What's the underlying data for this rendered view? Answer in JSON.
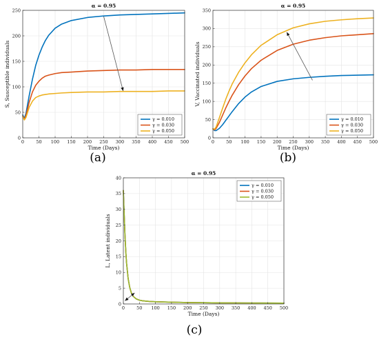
{
  "captions": [
    "(a)",
    "(b)",
    "(c)"
  ],
  "colors": {
    "g010": "#0072bd",
    "g030": "#d95319",
    "g050": "#edb120",
    "g050_c": "#9dbb2d"
  },
  "chart_data": [
    {
      "type": "line",
      "title": "α = 0.95",
      "xlabel": "Time (Days)",
      "ylabel": "S, Susceptible individuals",
      "xlim": [
        0,
        500
      ],
      "ylim": [
        0,
        250
      ],
      "xticks": [
        0,
        50,
        100,
        150,
        200,
        250,
        300,
        350,
        400,
        450,
        500
      ],
      "yticks": [
        0,
        50,
        100,
        150,
        200,
        250
      ],
      "grid": true,
      "legend": "bottom-right",
      "annotation": "arrow from about (250, 238) to (310, 92), direction of increasing γ",
      "series": [
        {
          "name": "γ = 0.010",
          "color": "#0072bd",
          "x": [
            0,
            5,
            10,
            20,
            30,
            40,
            50,
            60,
            70,
            80,
            100,
            120,
            150,
            200,
            250,
            300,
            350,
            400,
            450,
            500
          ],
          "y": [
            45,
            38,
            48,
            83,
            115,
            142,
            162,
            178,
            191,
            201,
            215,
            223,
            230,
            236,
            239,
            241,
            242,
            243,
            244,
            245
          ]
        },
        {
          "name": "γ = 0.030",
          "color": "#d95319",
          "x": [
            0,
            5,
            10,
            20,
            30,
            40,
            50,
            60,
            70,
            80,
            100,
            120,
            150,
            200,
            250,
            300,
            350,
            400,
            450,
            500
          ],
          "y": [
            43,
            36,
            44,
            70,
            90,
            103,
            111,
            117,
            121,
            123,
            126,
            128,
            129,
            131,
            132,
            133,
            133,
            134,
            134,
            134
          ]
        },
        {
          "name": "γ = 0.050",
          "color": "#edb120",
          "x": [
            0,
            5,
            10,
            20,
            30,
            40,
            50,
            60,
            70,
            80,
            100,
            120,
            150,
            200,
            250,
            300,
            350,
            400,
            450,
            500
          ],
          "y": [
            42,
            35,
            40,
            60,
            72,
            79,
            82,
            84,
            85,
            86,
            87,
            88,
            89,
            90,
            90,
            91,
            91,
            91,
            92,
            92
          ]
        }
      ]
    },
    {
      "type": "line",
      "title": "α = 0.95",
      "xlabel": "Time (Days)",
      "ylabel": "V, Vaccinated individuals",
      "xlim": [
        0,
        500
      ],
      "ylim": [
        0,
        350
      ],
      "xticks": [
        0,
        50,
        100,
        150,
        200,
        250,
        300,
        350,
        400,
        450,
        500
      ],
      "yticks": [
        0,
        50,
        100,
        150,
        200,
        250,
        300,
        350
      ],
      "grid": true,
      "legend": "bottom-right",
      "annotation": "arrow from about (310, 158) to (230, 290), direction of increasing γ",
      "series": [
        {
          "name": "γ = 0.010",
          "color": "#0072bd",
          "x": [
            0,
            5,
            10,
            20,
            30,
            40,
            50,
            60,
            80,
            100,
            120,
            150,
            200,
            250,
            300,
            350,
            400,
            450,
            500
          ],
          "y": [
            25,
            20,
            20,
            26,
            36,
            48,
            60,
            72,
            94,
            112,
            126,
            141,
            155,
            162,
            166,
            169,
            171,
            172,
            173
          ]
        },
        {
          "name": "γ = 0.030",
          "color": "#d95319",
          "x": [
            0,
            5,
            10,
            20,
            30,
            40,
            50,
            60,
            80,
            100,
            120,
            150,
            200,
            250,
            300,
            350,
            400,
            450,
            500
          ],
          "y": [
            25,
            22,
            26,
            42,
            62,
            82,
            100,
            117,
            146,
            170,
            190,
            213,
            240,
            257,
            268,
            275,
            280,
            283,
            286
          ]
        },
        {
          "name": "γ = 0.050",
          "color": "#edb120",
          "x": [
            0,
            5,
            10,
            20,
            30,
            40,
            50,
            60,
            80,
            100,
            120,
            150,
            200,
            250,
            300,
            350,
            400,
            450,
            500
          ],
          "y": [
            25,
            24,
            30,
            55,
            81,
            106,
            128,
            148,
            180,
            206,
            228,
            254,
            283,
            302,
            313,
            320,
            324,
            327,
            329
          ]
        }
      ]
    },
    {
      "type": "line",
      "title": "α = 0.95",
      "xlabel": "Time (Days)",
      "ylabel": "L, Latent individuals",
      "xlim": [
        0,
        500
      ],
      "ylim": [
        0,
        40
      ],
      "xticks": [
        0,
        50,
        100,
        150,
        200,
        250,
        300,
        350,
        400,
        450,
        500
      ],
      "yticks": [
        0,
        5,
        10,
        15,
        20,
        25,
        30,
        35,
        40
      ],
      "grid": true,
      "legend": "top-right",
      "annotation": "double-headed arrow near (5, 1) to (35, 3.5)",
      "series": [
        {
          "name": "γ = 0.010",
          "color": "#0072bd",
          "x": [
            0,
            2,
            5,
            8,
            10,
            15,
            20,
            25,
            30,
            40,
            50,
            60,
            80,
            100,
            150,
            200,
            300,
            400,
            500
          ],
          "y": [
            36,
            30,
            22,
            16,
            13,
            8,
            5.2,
            3.5,
            2.5,
            1.6,
            1.2,
            1.0,
            0.8,
            0.7,
            0.55,
            0.45,
            0.35,
            0.3,
            0.25
          ]
        },
        {
          "name": "γ = 0.030",
          "color": "#d95319",
          "x": [
            0,
            2,
            5,
            8,
            10,
            15,
            20,
            25,
            30,
            40,
            50,
            60,
            80,
            100,
            150,
            200,
            300,
            400,
            500
          ],
          "y": [
            36,
            30,
            22,
            16,
            13,
            8,
            5.2,
            3.5,
            2.5,
            1.6,
            1.2,
            1.0,
            0.8,
            0.7,
            0.55,
            0.45,
            0.35,
            0.3,
            0.25
          ]
        },
        {
          "name": "γ = 0.050",
          "color": "#9dbb2d",
          "x": [
            0,
            2,
            5,
            8,
            10,
            15,
            20,
            25,
            30,
            40,
            50,
            60,
            80,
            100,
            150,
            200,
            300,
            400,
            500
          ],
          "y": [
            36,
            30,
            22,
            16,
            13,
            8,
            5.2,
            3.5,
            2.5,
            1.6,
            1.2,
            1.0,
            0.8,
            0.7,
            0.55,
            0.45,
            0.35,
            0.3,
            0.25
          ]
        }
      ]
    }
  ]
}
